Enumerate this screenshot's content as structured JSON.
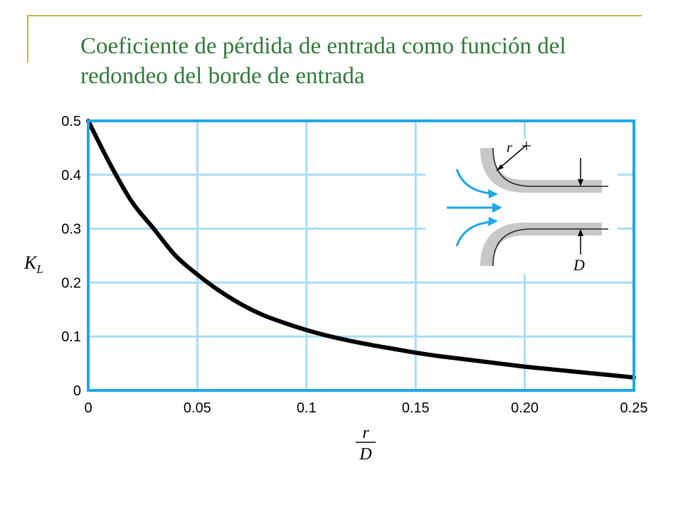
{
  "slide": {
    "title_line1": "Coeficiente de pérdida de entrada como función del",
    "title_line2": "redondeo del borde de entrada"
  },
  "colors": {
    "title": "#2e7a37",
    "frame": "#1ea7e6",
    "grid": "#a9ddf5",
    "curve": "#000000",
    "accent_rule": "#c9b34a",
    "pipe_wall": "#c8c8c8"
  },
  "chart_data": {
    "type": "line",
    "xlabel_num": "r",
    "xlabel_den": "D",
    "ylabel_main": "K",
    "ylabel_sub": "L",
    "xlim": [
      0,
      0.25
    ],
    "ylim": [
      0,
      0.5
    ],
    "x_ticks": [
      {
        "value": 0,
        "label": "0"
      },
      {
        "value": 0.05,
        "label": "0.05"
      },
      {
        "value": 0.1,
        "label": "0.1"
      },
      {
        "value": 0.15,
        "label": "0.15"
      },
      {
        "value": 0.2,
        "label": "0.20"
      },
      {
        "value": 0.25,
        "label": "0.25"
      }
    ],
    "y_ticks": [
      {
        "value": 0,
        "label": "0"
      },
      {
        "value": 0.1,
        "label": "0.1"
      },
      {
        "value": 0.2,
        "label": "0.2"
      },
      {
        "value": 0.3,
        "label": "0.3"
      },
      {
        "value": 0.4,
        "label": "0.4"
      },
      {
        "value": 0.5,
        "label": "0.5"
      }
    ],
    "grid": true,
    "series": [
      {
        "x": [
          0,
          0.01,
          0.02,
          0.03,
          0.04,
          0.05,
          0.06,
          0.07,
          0.08,
          0.09,
          0.1,
          0.11,
          0.12,
          0.13,
          0.14,
          0.15,
          0.16,
          0.17,
          0.18,
          0.19,
          0.2,
          0.21,
          0.22,
          0.23,
          0.24,
          0.25
        ],
        "y": [
          0.5,
          0.42,
          0.35,
          0.3,
          0.25,
          0.215,
          0.185,
          0.16,
          0.14,
          0.125,
          0.112,
          0.101,
          0.092,
          0.084,
          0.077,
          0.07,
          0.064,
          0.059,
          0.054,
          0.049,
          0.044,
          0.04,
          0.036,
          0.032,
          0.028,
          0.024
        ]
      }
    ],
    "inset": {
      "description_labels": {
        "radius": "r",
        "diameter": "D"
      }
    }
  }
}
